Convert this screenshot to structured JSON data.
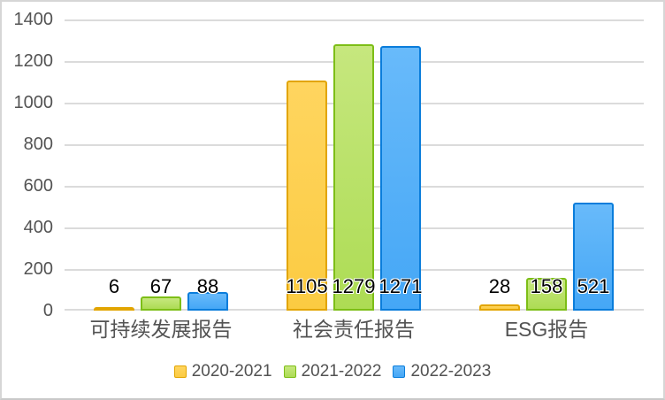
{
  "page": {
    "background": "#FFFFFF",
    "frame_border_color": "#D6D6D6"
  },
  "chart_data": {
    "type": "bar",
    "title": "",
    "categories": [
      "可持续发展报告",
      "社会责任报告",
      "ESG报告"
    ],
    "series": [
      {
        "name": "2020-2021",
        "values": [
          6,
          1105,
          28
        ],
        "fill_top": "#FFD55F",
        "fill_bottom": "#FBCB42",
        "border": "#E2A500"
      },
      {
        "name": "2021-2022",
        "values": [
          67,
          1279,
          158
        ],
        "fill_top": "#C6E77E",
        "fill_bottom": "#ADDC54",
        "border": "#7DBE17"
      },
      {
        "name": "2022-2023",
        "values": [
          88,
          1271,
          521
        ],
        "fill_top": "#68BAFA",
        "fill_bottom": "#45A7F6",
        "border": "#0A7DDB"
      }
    ],
    "ylim": [
      0,
      1400
    ],
    "yticks": [
      0,
      200,
      400,
      600,
      800,
      1000,
      1200,
      1400
    ],
    "grid": true,
    "gridline_color": "#DBDBDB",
    "axis_text_color": "#535353",
    "value_label_color": "#000000",
    "data_labels": true,
    "legend_position": "bottom"
  }
}
